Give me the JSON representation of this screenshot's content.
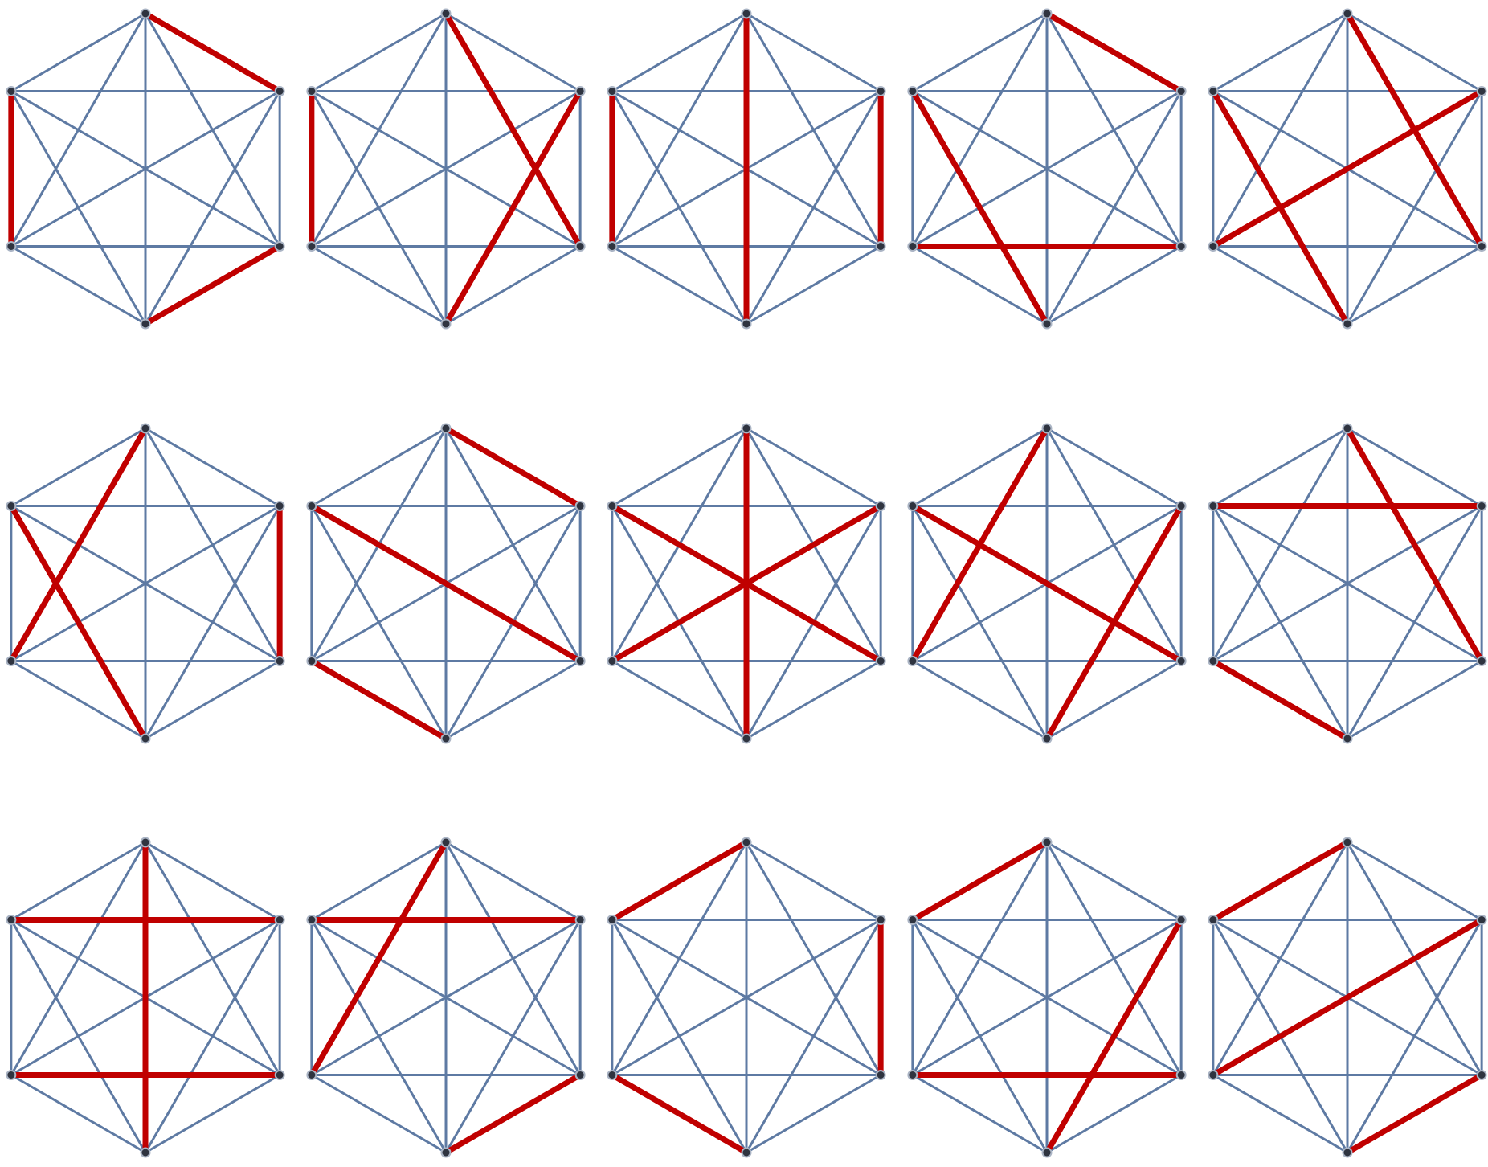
{
  "colors": {
    "background": "#ffffff",
    "edge": "#5e7aa3",
    "matching_edge": "#c00000",
    "vertex_fill": "#2f3440",
    "vertex_stroke": "#aab4c4"
  },
  "graph": {
    "name": "K6",
    "vertex_labels": [
      "top",
      "upper-right",
      "lower-right",
      "bottom",
      "lower-left",
      "upper-left"
    ],
    "edges": [
      [
        0,
        1
      ],
      [
        0,
        2
      ],
      [
        0,
        3
      ],
      [
        0,
        4
      ],
      [
        0,
        5
      ],
      [
        1,
        2
      ],
      [
        1,
        3
      ],
      [
        1,
        4
      ],
      [
        1,
        5
      ],
      [
        2,
        3
      ],
      [
        2,
        4
      ],
      [
        2,
        5
      ],
      [
        3,
        4
      ],
      [
        3,
        5
      ],
      [
        4,
        5
      ]
    ]
  },
  "panels": [
    {
      "row": 1,
      "col": 1,
      "matching": [
        [
          0,
          1
        ],
        [
          2,
          3
        ],
        [
          4,
          5
        ]
      ]
    },
    {
      "row": 1,
      "col": 2,
      "matching": [
        [
          0,
          2
        ],
        [
          1,
          3
        ],
        [
          4,
          5
        ]
      ]
    },
    {
      "row": 1,
      "col": 3,
      "matching": [
        [
          0,
          3
        ],
        [
          1,
          2
        ],
        [
          4,
          5
        ]
      ]
    },
    {
      "row": 1,
      "col": 4,
      "matching": [
        [
          0,
          1
        ],
        [
          2,
          4
        ],
        [
          3,
          5
        ]
      ]
    },
    {
      "row": 1,
      "col": 5,
      "matching": [
        [
          0,
          2
        ],
        [
          1,
          4
        ],
        [
          3,
          5
        ]
      ]
    },
    {
      "row": 2,
      "col": 1,
      "matching": [
        [
          0,
          4
        ],
        [
          1,
          2
        ],
        [
          3,
          5
        ]
      ]
    },
    {
      "row": 2,
      "col": 2,
      "matching": [
        [
          0,
          1
        ],
        [
          2,
          5
        ],
        [
          3,
          4
        ]
      ]
    },
    {
      "row": 2,
      "col": 3,
      "matching": [
        [
          0,
          3
        ],
        [
          1,
          4
        ],
        [
          2,
          5
        ]
      ]
    },
    {
      "row": 2,
      "col": 4,
      "matching": [
        [
          0,
          4
        ],
        [
          1,
          3
        ],
        [
          2,
          5
        ]
      ]
    },
    {
      "row": 2,
      "col": 5,
      "matching": [
        [
          0,
          2
        ],
        [
          1,
          5
        ],
        [
          3,
          4
        ]
      ]
    },
    {
      "row": 3,
      "col": 1,
      "matching": [
        [
          0,
          3
        ],
        [
          1,
          5
        ],
        [
          2,
          4
        ]
      ]
    },
    {
      "row": 3,
      "col": 2,
      "matching": [
        [
          0,
          4
        ],
        [
          1,
          5
        ],
        [
          2,
          3
        ]
      ]
    },
    {
      "row": 3,
      "col": 3,
      "matching": [
        [
          0,
          5
        ],
        [
          1,
          2
        ],
        [
          3,
          4
        ]
      ]
    },
    {
      "row": 3,
      "col": 4,
      "matching": [
        [
          0,
          5
        ],
        [
          1,
          3
        ],
        [
          2,
          4
        ]
      ]
    },
    {
      "row": 3,
      "col": 5,
      "matching": [
        [
          0,
          5
        ],
        [
          1,
          4
        ],
        [
          2,
          3
        ]
      ]
    }
  ]
}
